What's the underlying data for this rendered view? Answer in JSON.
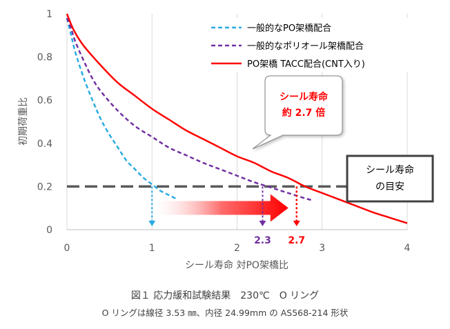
{
  "chart_data": {
    "type": "line",
    "title": "",
    "xlabel": "シール寿命 対PO架橋比",
    "ylabel": "初期荷重比",
    "xlim": [
      0,
      4
    ],
    "ylim": [
      0,
      1
    ],
    "x_ticks": [
      "0",
      "1",
      "2",
      "3",
      "4"
    ],
    "y_ticks": [
      "0",
      "0.2",
      "0.4",
      "0.6",
      "0.8",
      "1"
    ],
    "grid": "vertical",
    "legend_position": "top-right",
    "series": [
      {
        "name": "一般的なPO架橋配合",
        "color": "#29abe2",
        "dash": "dashed",
        "x": [
          0,
          0.05,
          0.1,
          0.2,
          0.3,
          0.4,
          0.5,
          0.6,
          0.7,
          0.8,
          0.9,
          1.0,
          1.1,
          1.2,
          1.3
        ],
        "y": [
          0.98,
          0.9,
          0.82,
          0.7,
          0.6,
          0.51,
          0.44,
          0.38,
          0.32,
          0.28,
          0.24,
          0.21,
          0.18,
          0.16,
          0.14
        ]
      },
      {
        "name": "一般的なポリオール架橋配合",
        "color": "#7030a0",
        "dash": "dashed",
        "x": [
          0,
          0.05,
          0.1,
          0.2,
          0.3,
          0.4,
          0.6,
          0.8,
          1.0,
          1.2,
          1.4,
          1.6,
          1.8,
          2.0,
          2.2,
          2.4,
          2.6,
          2.8,
          2.9
        ],
        "y": [
          0.98,
          0.93,
          0.87,
          0.78,
          0.7,
          0.64,
          0.55,
          0.48,
          0.43,
          0.38,
          0.345,
          0.31,
          0.28,
          0.25,
          0.22,
          0.195,
          0.17,
          0.145,
          0.135
        ]
      },
      {
        "name": "PO架橋 TACC配合(CNT入り)",
        "color": "#ff0000",
        "dash": "solid",
        "x": [
          0,
          0.05,
          0.1,
          0.2,
          0.4,
          0.6,
          0.8,
          1.0,
          1.2,
          1.4,
          1.6,
          1.8,
          2.0,
          2.2,
          2.4,
          2.6,
          2.8,
          3.0,
          3.2,
          3.4,
          3.6,
          3.8,
          4.0
        ],
        "y": [
          1.0,
          0.95,
          0.91,
          0.85,
          0.76,
          0.68,
          0.62,
          0.56,
          0.51,
          0.46,
          0.42,
          0.38,
          0.34,
          0.31,
          0.27,
          0.24,
          0.2,
          0.17,
          0.14,
          0.11,
          0.08,
          0.055,
          0.03
        ]
      }
    ],
    "threshold": {
      "y": 0.2,
      "label_line1": "シール寿命",
      "label_line2": "の目安"
    },
    "markers": [
      {
        "x": 1.0,
        "label": "",
        "color": "#29abe2"
      },
      {
        "x": 2.3,
        "label": "2.3",
        "color": "#7030a0"
      },
      {
        "x": 2.7,
        "label": "2.7",
        "color": "#ff0000"
      }
    ],
    "callout": {
      "line1": "シール寿命",
      "line2": "約 2.7 倍"
    },
    "arrow": {
      "from_x": 1.0,
      "to_x": 2.7,
      "y": 0.12
    }
  },
  "caption": {
    "line1": "図１ 応力緩和試験結果　230℃　O リング",
    "line2": "O リングは線径 3.53 ㎜、内径 24.99mm の AS568-214 形状"
  }
}
